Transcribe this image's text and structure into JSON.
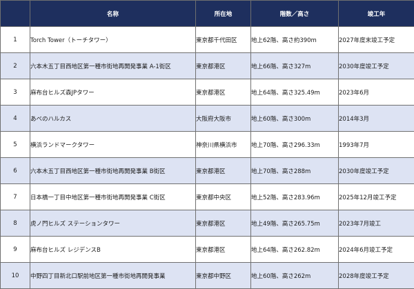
{
  "table": {
    "headers": {
      "rank": "",
      "name": "名称",
      "location": "所在地",
      "floors_height": "階数／高さ",
      "completion": "竣工年"
    },
    "rows": [
      {
        "rank": "1",
        "name": "Torch Tower（トーチタワー）",
        "location": "東京都千代田区",
        "spec": "地上62階、高さ約390m",
        "completion": "2027年度末竣工予定"
      },
      {
        "rank": "2",
        "name": "六本木五丁目西地区第一種市街地再開発事業 A-1街区",
        "location": "東京都港区",
        "spec": "地上66階、高さ327m",
        "completion": "2030年度竣工予定"
      },
      {
        "rank": "3",
        "name": "麻布台ヒルズ森JPタワー",
        "location": "東京都港区",
        "spec": "地上64階、高さ325.49m",
        "completion": "2023年6月"
      },
      {
        "rank": "4",
        "name": "あべのハルカス",
        "location": "大阪府大阪市",
        "spec": "地上60階、高さ300m",
        "completion": "2014年3月"
      },
      {
        "rank": "5",
        "name": "横浜ランドマークタワー",
        "location": "神奈川県横浜市",
        "spec": "地上70階、高さ296.33m",
        "completion": "1993年7月"
      },
      {
        "rank": "6",
        "name": "六本木五丁目西地区第一種市街地再開発事業 B街区",
        "location": "東京都港区",
        "spec": "地上70階、高さ288m",
        "completion": "2030年度竣工予定"
      },
      {
        "rank": "7",
        "name": "日本橋一丁目中地区第一種市街地再開発事業 C街区",
        "location": "東京都中央区",
        "spec": "地上52階、高さ283.96m",
        "completion": "2025年12月竣工予定"
      },
      {
        "rank": "8",
        "name": "虎ノ門ヒルズ ステーションタワー",
        "location": "東京都港区",
        "spec": "地上49階、高さ265.75m",
        "completion": "2023年7月竣工"
      },
      {
        "rank": "9",
        "name": "麻布台ヒルズ レジデンスB",
        "location": "東京都港区",
        "spec": "地上64階、高さ262.82m",
        "completion": "2024年6月竣工予定"
      },
      {
        "rank": "10",
        "name": "中野四丁目新北口駅前地区第一種市街地再開発事業",
        "location": "東京都中野区",
        "spec": "地上60階、高さ262m",
        "completion": "2028年度竣工予定"
      }
    ]
  },
  "colors": {
    "header_bg": "#1e2f5e",
    "header_text": "#ffffff",
    "row_even_bg": "#dde3f3",
    "row_odd_bg": "#ffffff",
    "border": "#6f6f6f"
  }
}
